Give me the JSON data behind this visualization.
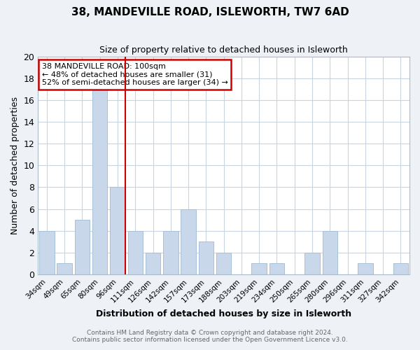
{
  "title1": "38, MANDEVILLE ROAD, ISLEWORTH, TW7 6AD",
  "title2": "Size of property relative to detached houses in Isleworth",
  "xlabel": "Distribution of detached houses by size in Isleworth",
  "ylabel": "Number of detached properties",
  "categories": [
    "34sqm",
    "49sqm",
    "65sqm",
    "80sqm",
    "96sqm",
    "111sqm",
    "126sqm",
    "142sqm",
    "157sqm",
    "173sqm",
    "188sqm",
    "203sqm",
    "219sqm",
    "234sqm",
    "250sqm",
    "265sqm",
    "280sqm",
    "296sqm",
    "311sqm",
    "327sqm",
    "342sqm"
  ],
  "values": [
    4,
    1,
    5,
    17,
    8,
    4,
    2,
    4,
    6,
    3,
    2,
    0,
    1,
    1,
    0,
    2,
    4,
    0,
    1,
    0,
    1
  ],
  "bar_color": "#c8d8ea",
  "bar_edge_color": "#a8c0d8",
  "highlight_index": 4,
  "vline_index": 4,
  "ylim": [
    0,
    20
  ],
  "yticks": [
    0,
    2,
    4,
    6,
    8,
    10,
    12,
    14,
    16,
    18,
    20
  ],
  "annotation_title": "38 MANDEVILLE ROAD: 100sqm",
  "annotation_line1": "← 48% of detached houses are smaller (31)",
  "annotation_line2": "52% of semi-detached houses are larger (34) →",
  "annotation_box_color": "#cc0000",
  "footer_line1": "Contains HM Land Registry data © Crown copyright and database right 2024.",
  "footer_line2": "Contains public sector information licensed under the Open Government Licence v3.0.",
  "bg_color": "#eef2f7",
  "plot_bg_color": "#ffffff",
  "grid_color": "#c8d4e0"
}
